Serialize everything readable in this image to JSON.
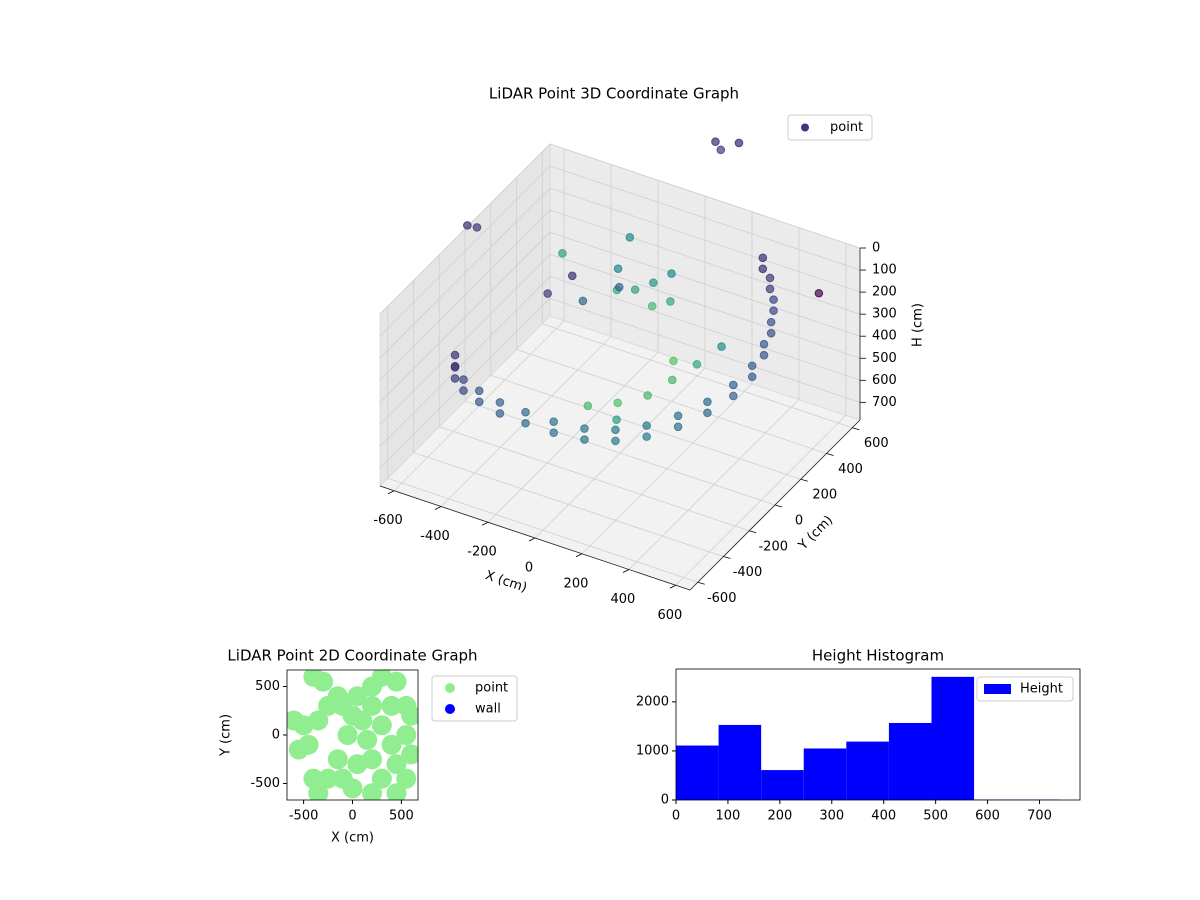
{
  "chart_data": [
    {
      "type": "scatter3d",
      "title": "LiDAR Point 3D Coordinate Graph",
      "xlabel": "X (cm)",
      "ylabel": "Y (cm)",
      "zlabel": "H (cm)",
      "xlim": [
        -660,
        660
      ],
      "ylim": [
        -660,
        660
      ],
      "zlim": [
        780,
        0
      ],
      "xticks": [
        -600,
        -400,
        -200,
        0,
        200,
        400,
        600
      ],
      "yticks": [
        -600,
        -400,
        -200,
        0,
        200,
        400,
        600
      ],
      "zticks": [
        0,
        100,
        200,
        300,
        400,
        500,
        600,
        700
      ],
      "colormap": "viridis",
      "legend": "upper right",
      "grid": true,
      "series": [
        {
          "name": "point",
          "color": "#46327e",
          "x": [
            -620,
            -560,
            -480,
            -380,
            -270,
            -150,
            -30,
            90,
            200,
            300,
            390,
            460,
            510,
            530,
            520,
            490,
            440,
            370,
            290,
            -620,
            -560,
            -480,
            -380,
            -270,
            -150,
            -30,
            90,
            200,
            300,
            390,
            460,
            510,
            530,
            520,
            490,
            440,
            370,
            290,
            100,
            200,
            250,
            300,
            0,
            350,
            150,
            200,
            -100,
            -50,
            0,
            -150,
            50,
            -200,
            0,
            -450,
            -350,
            -500,
            -250,
            100,
            150,
            50,
            -650,
            -620,
            600,
            -300,
            -150
          ],
          "y": [
            -150,
            -260,
            -340,
            -400,
            -440,
            -460,
            -460,
            -440,
            -400,
            -340,
            -260,
            -160,
            -50,
            60,
            170,
            280,
            390,
            490,
            580,
            -150,
            -260,
            -340,
            -400,
            -440,
            -460,
            -460,
            -440,
            -400,
            -340,
            -260,
            -160,
            -50,
            60,
            170,
            280,
            390,
            490,
            580,
            -200,
            -150,
            -50,
            50,
            -250,
            150,
            -300,
            50,
            300,
            350,
            250,
            250,
            300,
            350,
            400,
            450,
            350,
            350,
            450,
            600,
            650,
            650,
            0,
            20,
            450,
            100,
            350
          ],
          "z": [
            470,
            440,
            420,
            400,
            390,
            380,
            380,
            380,
            370,
            350,
            320,
            290,
            260,
            230,
            200,
            175,
            155,
            140,
            130,
            520,
            490,
            470,
            450,
            440,
            430,
            430,
            430,
            420,
            400,
            370,
            340,
            310,
            280,
            250,
            225,
            205,
            190,
            180,
            400,
            360,
            330,
            300,
            420,
            260,
            400,
            320,
            250,
            230,
            260,
            240,
            250,
            220,
            200,
            400,
            420,
            440,
            380,
            -280,
            -300,
            -270,
            -20,
            -10,
            104,
            40,
            60
          ]
        }
      ]
    },
    {
      "type": "scatter",
      "title": "LiDAR Point 2D Coordinate Graph",
      "xlabel": "X (cm)",
      "ylabel": "Y (cm)",
      "xlim": [
        -670,
        670
      ],
      "ylim": [
        -670,
        670
      ],
      "xticks": [
        -500,
        0,
        500
      ],
      "yticks": [
        -500,
        0,
        500
      ],
      "legend": "outside right",
      "series": [
        {
          "name": "point",
          "color": "#90ee90",
          "x": [
            300,
            450,
            200,
            550,
            400,
            200,
            50,
            100,
            300,
            550,
            400,
            150,
            0,
            -100,
            -50,
            200,
            450,
            550,
            300,
            50,
            -150,
            -250,
            0,
            -350,
            200,
            450,
            -250,
            -350,
            -500,
            -600,
            -450,
            -550,
            -400,
            -300,
            -150,
            600,
            600,
            -100,
            -400
          ],
          "y": [
            600,
            550,
            500,
            300,
            300,
            300,
            400,
            150,
            100,
            0,
            -100,
            -50,
            200,
            300,
            0,
            -250,
            -300,
            -450,
            -450,
            -300,
            -250,
            -450,
            -550,
            -600,
            -600,
            -600,
            300,
            150,
            100,
            150,
            -100,
            -150,
            600,
            550,
            400,
            -200,
            200,
            -450,
            -450
          ]
        },
        {
          "name": "wall",
          "color": "#0000ff",
          "x": [],
          "y": []
        }
      ]
    },
    {
      "type": "hist",
      "title": "Height Histogram",
      "bins": [
        0,
        82,
        164,
        246,
        328,
        410,
        492,
        574,
        656,
        738
      ],
      "counts": [
        1110,
        1530,
        610,
        1050,
        1190,
        1570,
        2510,
        10,
        10
      ],
      "name": "Height",
      "color": "#0000ff",
      "xlim": [
        0,
        778
      ],
      "ylim": [
        0,
        2670
      ],
      "xticks": [
        0,
        100,
        200,
        300,
        400,
        500,
        600,
        700
      ],
      "yticks": [
        0,
        1000,
        2000
      ],
      "legend": "upper right"
    }
  ]
}
